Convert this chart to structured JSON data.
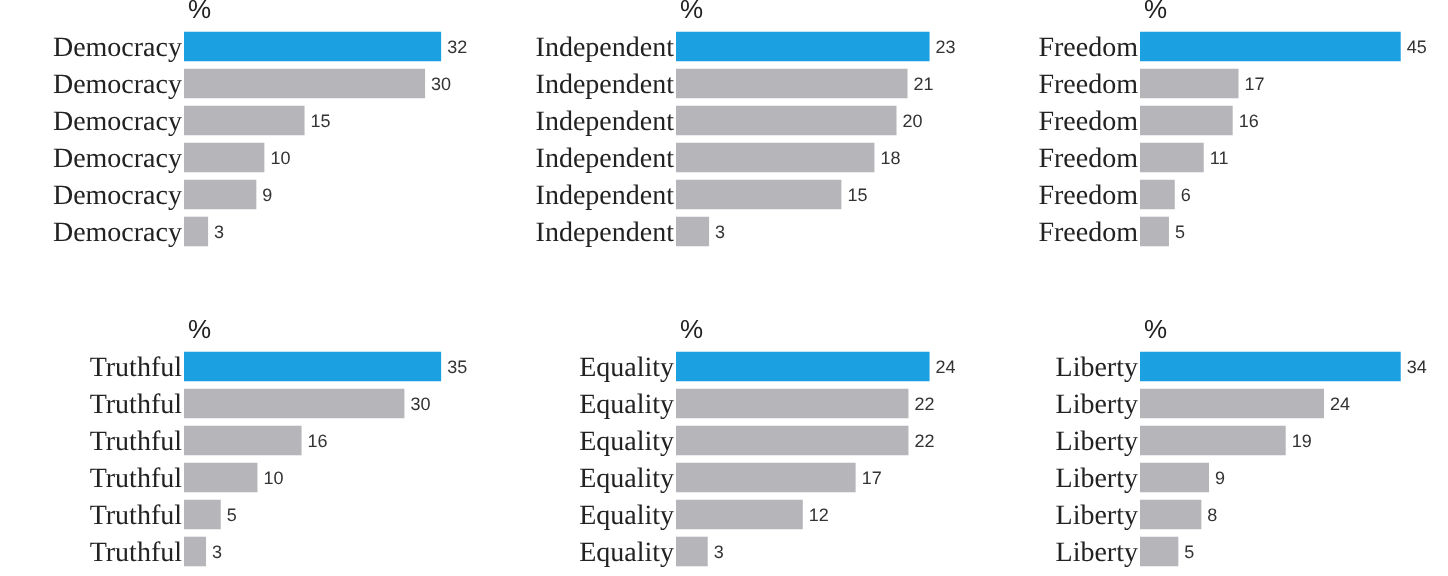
{
  "chart_data": [
    {
      "type": "bar",
      "orientation": "horizontal",
      "title": "%",
      "categories": [
        "Democracy",
        "Democracy",
        "Democracy",
        "Democracy",
        "Democracy",
        "Democracy"
      ],
      "values": [
        32,
        30,
        15,
        10,
        9,
        3
      ],
      "colors": [
        "#1ba1e2",
        "#b5b5ba",
        "#b5b5ba",
        "#b5b5ba",
        "#b5b5ba",
        "#b5b5ba"
      ],
      "data_labels": true
    },
    {
      "type": "bar",
      "orientation": "horizontal",
      "title": "%",
      "categories": [
        "Independent",
        "Independent",
        "Independent",
        "Independent",
        "Independent",
        "Independent"
      ],
      "values": [
        23,
        21,
        20,
        18,
        15,
        3
      ],
      "colors": [
        "#1ba1e2",
        "#b5b5ba",
        "#b5b5ba",
        "#b5b5ba",
        "#b5b5ba",
        "#b5b5ba"
      ],
      "data_labels": true
    },
    {
      "type": "bar",
      "orientation": "horizontal",
      "title": "%",
      "categories": [
        "Freedom",
        "Freedom",
        "Freedom",
        "Freedom",
        "Freedom",
        "Freedom"
      ],
      "values": [
        45,
        17,
        16,
        11,
        6,
        5
      ],
      "colors": [
        "#1ba1e2",
        "#b5b5ba",
        "#b5b5ba",
        "#b5b5ba",
        "#b5b5ba",
        "#b5b5ba"
      ],
      "data_labels": true
    },
    {
      "type": "bar",
      "orientation": "horizontal",
      "title": "%",
      "categories": [
        "Truthful",
        "Truthful",
        "Truthful",
        "Truthful",
        "Truthful",
        "Truthful"
      ],
      "values": [
        35,
        30,
        16,
        10,
        5,
        3
      ],
      "colors": [
        "#1ba1e2",
        "#b5b5ba",
        "#b5b5ba",
        "#b5b5ba",
        "#b5b5ba",
        "#b5b5ba"
      ],
      "data_labels": true
    },
    {
      "type": "bar",
      "orientation": "horizontal",
      "title": "%",
      "categories": [
        "Equality",
        "Equality",
        "Equality",
        "Equality",
        "Equality",
        "Equality"
      ],
      "values": [
        24,
        22,
        22,
        17,
        12,
        3
      ],
      "colors": [
        "#1ba1e2",
        "#b5b5ba",
        "#b5b5ba",
        "#b5b5ba",
        "#b5b5ba",
        "#b5b5ba"
      ],
      "data_labels": true
    },
    {
      "type": "bar",
      "orientation": "horizontal",
      "title": "%",
      "categories": [
        "Liberty",
        "Liberty",
        "Liberty",
        "Liberty",
        "Liberty",
        "Liberty"
      ],
      "values": [
        34,
        24,
        19,
        9,
        8,
        5
      ],
      "colors": [
        "#1ba1e2",
        "#b5b5ba",
        "#b5b5ba",
        "#b5b5ba",
        "#b5b5ba",
        "#b5b5ba"
      ],
      "data_labels": true
    }
  ]
}
